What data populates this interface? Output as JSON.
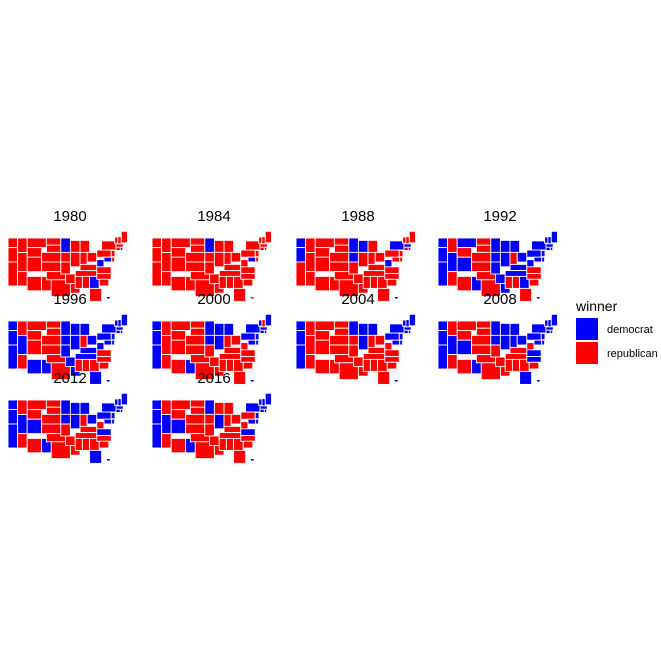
{
  "legend": {
    "title": "winner",
    "items": [
      {
        "label": "democrat",
        "color": "#0000ff"
      },
      {
        "label": "republican",
        "color": "#ff0000"
      }
    ]
  },
  "colors": {
    "democrat": "#0000ff",
    "republican": "#ff0000",
    "border": "#ffffff"
  },
  "panels": [
    {
      "year": "1980",
      "dem_states": [
        "MN",
        "MD",
        "WV",
        "GA",
        "RI",
        "HI"
      ]
    },
    {
      "year": "1984",
      "dem_states": [
        "MN",
        "MD"
      ]
    },
    {
      "year": "1988",
      "dem_states": [
        "WA",
        "OR",
        "MN",
        "WI",
        "IA",
        "WV",
        "NY",
        "MA",
        "RI",
        "HI"
      ]
    },
    {
      "year": "1992",
      "dem_states": [
        "WA",
        "OR",
        "CA",
        "NV",
        "NM",
        "CO",
        "MT",
        "MN",
        "WI",
        "IA",
        "MO",
        "IL",
        "MI",
        "OH",
        "KY",
        "TN",
        "AR",
        "LA",
        "GA",
        "WV",
        "MD",
        "DE",
        "PA",
        "NJ",
        "NY",
        "CT",
        "RI",
        "MA",
        "VT",
        "NH",
        "ME",
        "HI"
      ]
    },
    {
      "year": "1996",
      "dem_states": [
        "WA",
        "OR",
        "CA",
        "NV",
        "AZ",
        "NM",
        "MN",
        "WI",
        "IA",
        "MO",
        "IL",
        "MI",
        "OH",
        "KY",
        "TN",
        "AR",
        "LA",
        "WV",
        "MD",
        "DE",
        "PA",
        "NJ",
        "NY",
        "CT",
        "RI",
        "MA",
        "VT",
        "NH",
        "ME",
        "FL",
        "HI"
      ]
    },
    {
      "year": "2000",
      "dem_states": [
        "WA",
        "OR",
        "CA",
        "NM",
        "MN",
        "WI",
        "IA",
        "IL",
        "MI",
        "PA",
        "MD",
        "DE",
        "NJ",
        "NY",
        "CT",
        "RI",
        "MA",
        "VT",
        "ME",
        "HI"
      ]
    },
    {
      "year": "2004",
      "dem_states": [
        "WA",
        "OR",
        "CA",
        "MN",
        "WI",
        "IL",
        "MI",
        "PA",
        "MD",
        "DE",
        "NJ",
        "NY",
        "CT",
        "RI",
        "MA",
        "VT",
        "NH",
        "ME",
        "HI"
      ]
    },
    {
      "year": "2008",
      "dem_states": [
        "WA",
        "OR",
        "CA",
        "NV",
        "CO",
        "NM",
        "MN",
        "WI",
        "IA",
        "IL",
        "MI",
        "IN",
        "OH",
        "PA",
        "VA",
        "NC",
        "FL",
        "MD",
        "DE",
        "NJ",
        "NY",
        "CT",
        "RI",
        "MA",
        "VT",
        "NH",
        "ME",
        "HI"
      ]
    },
    {
      "year": "2012",
      "dem_states": [
        "WA",
        "OR",
        "CA",
        "NV",
        "CO",
        "NM",
        "MN",
        "WI",
        "IA",
        "IL",
        "MI",
        "OH",
        "PA",
        "VA",
        "FL",
        "MD",
        "DE",
        "NJ",
        "NY",
        "CT",
        "RI",
        "MA",
        "VT",
        "NH",
        "ME",
        "HI"
      ]
    },
    {
      "year": "2016",
      "dem_states": [
        "WA",
        "OR",
        "CA",
        "NV",
        "CO",
        "NM",
        "MN",
        "IL",
        "VA",
        "MD",
        "DE",
        "NJ",
        "NY",
        "CT",
        "RI",
        "MA",
        "VT",
        "NH",
        "ME",
        "HI"
      ]
    }
  ]
}
